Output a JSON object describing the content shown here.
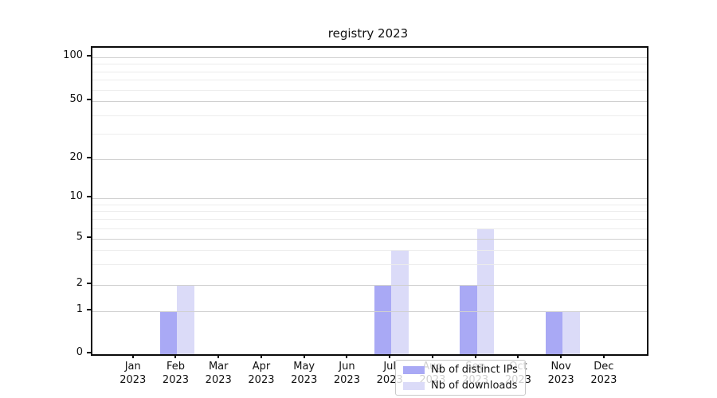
{
  "chart_data": {
    "type": "bar",
    "title": "registry 2023",
    "categories": [
      "Jan 2023",
      "Feb 2023",
      "Mar 2023",
      "Apr 2023",
      "May 2023",
      "Jun 2023",
      "Jul 2023",
      "Aug 2023",
      "Sep 2023",
      "Oct 2023",
      "Nov 2023",
      "Dec 2023"
    ],
    "series": [
      {
        "name": "Nb of distinct IPs",
        "color": "#a9a9f5",
        "values": [
          0,
          1,
          0,
          0,
          0,
          0,
          2,
          0,
          2,
          0,
          1,
          0
        ]
      },
      {
        "name": "Nb of downloads",
        "color": "#dbdbf8",
        "values": [
          0,
          2,
          0,
          0,
          0,
          0,
          4,
          0,
          6,
          0,
          1,
          0
        ]
      }
    ],
    "yscale": "symlog",
    "yticks": [
      0,
      1,
      2,
      5,
      10,
      20,
      50,
      100
    ],
    "minor_yticks": [
      3,
      4,
      6,
      7,
      8,
      9,
      30,
      40,
      60,
      70,
      80,
      90
    ],
    "ylim": [
      0,
      115
    ],
    "xlabel": "",
    "ylabel": "",
    "grid": true,
    "legend_position": "lower center",
    "colors": {
      "major_grid": "#d0d0d0",
      "minor_grid": "#ececec",
      "spine": "#0a0a0a",
      "background": "#ffffff"
    }
  }
}
